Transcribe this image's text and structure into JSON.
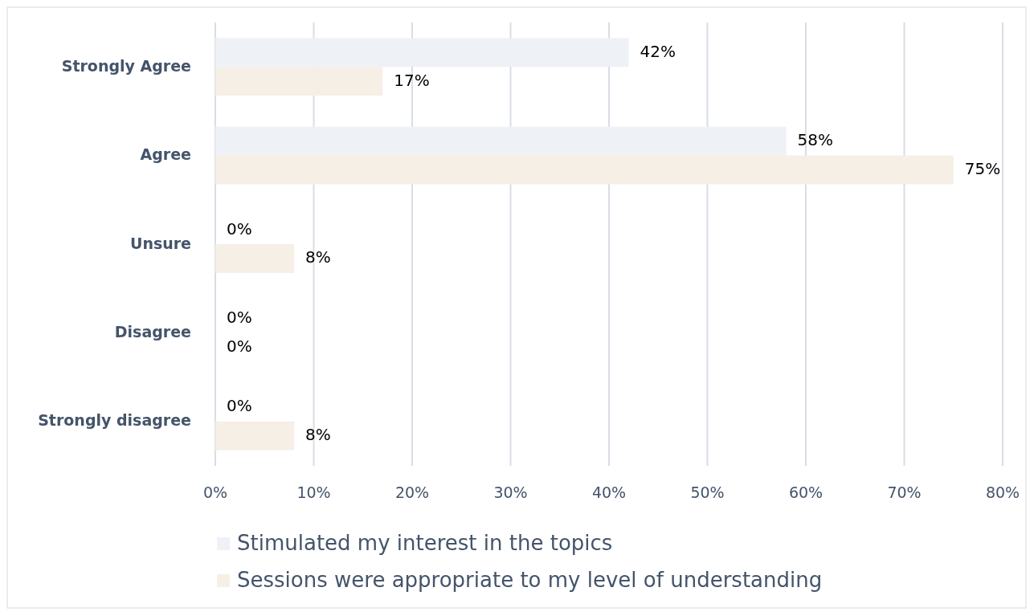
{
  "chart_data": {
    "type": "bar",
    "orientation": "horizontal",
    "categories": [
      "Strongly Agree",
      "Agree",
      "Unsure",
      "Disagree",
      "Strongly disagree"
    ],
    "series": [
      {
        "name": "Stimulated my interest in the topics",
        "color": "#eef1f6",
        "values": [
          42,
          58,
          0,
          0,
          0
        ]
      },
      {
        "name": "Sessions were appropriate to my level of understanding",
        "color": "#f6efe6",
        "values": [
          17,
          75,
          8,
          0,
          8
        ]
      }
    ],
    "xlim": [
      0,
      80
    ],
    "xticks": [
      {
        "value": 0,
        "label": "0%"
      },
      {
        "value": 10,
        "label": "10%"
      },
      {
        "value": 20,
        "label": "20%"
      },
      {
        "value": 30,
        "label": "30%"
      },
      {
        "value": 40,
        "label": "40%"
      },
      {
        "value": 50,
        "label": "50%"
      },
      {
        "value": 60,
        "label": "60%"
      },
      {
        "value": 70,
        "label": "70%"
      },
      {
        "value": 80,
        "label": "80%"
      }
    ],
    "value_labels": [
      [
        "42%",
        "58%",
        "0%",
        "0%",
        "0%"
      ],
      [
        "17%",
        "75%",
        "8%",
        "0%",
        "8%"
      ]
    ],
    "grid": "x",
    "legend": "bottom"
  }
}
